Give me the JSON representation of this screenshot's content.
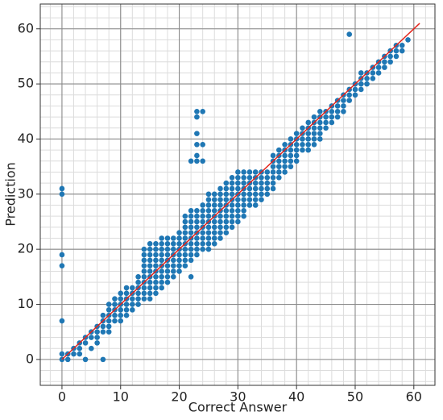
{
  "chart_data": {
    "type": "scatter",
    "xlabel": "Correct Answer",
    "ylabel": "Prediction",
    "xlim": [
      -3.7,
      63.6
    ],
    "ylim": [
      -4.7,
      64.5
    ],
    "xticks": [
      0,
      10,
      20,
      30,
      40,
      50,
      60
    ],
    "yticks": [
      0,
      10,
      20,
      30,
      40,
      50,
      60
    ],
    "grid": true,
    "minor_step": 2,
    "color": "#1f77b4",
    "x": [
      0,
      0,
      0,
      0,
      0,
      0,
      0,
      1,
      1,
      2,
      2,
      3,
      3,
      3,
      4,
      4,
      4,
      5,
      5,
      5,
      6,
      6,
      6,
      6,
      7,
      7,
      7,
      7,
      7,
      8,
      8,
      8,
      8,
      8,
      8,
      9,
      9,
      9,
      9,
      9,
      10,
      10,
      10,
      10,
      10,
      10,
      11,
      11,
      11,
      11,
      11,
      11,
      12,
      12,
      12,
      12,
      12,
      13,
      13,
      13,
      13,
      13,
      13,
      14,
      14,
      14,
      14,
      14,
      14,
      14,
      14,
      14,
      14,
      15,
      15,
      15,
      15,
      15,
      15,
      15,
      15,
      15,
      15,
      15,
      16,
      16,
      16,
      16,
      16,
      16,
      16,
      16,
      16,
      16,
      17,
      17,
      17,
      17,
      17,
      17,
      17,
      17,
      17,
      17,
      18,
      18,
      18,
      18,
      18,
      18,
      18,
      18,
      18,
      19,
      19,
      19,
      19,
      19,
      19,
      19,
      19,
      20,
      20,
      20,
      20,
      20,
      20,
      20,
      20,
      21,
      21,
      21,
      21,
      21,
      21,
      21,
      21,
      21,
      21,
      22,
      22,
      22,
      22,
      22,
      22,
      22,
      22,
      22,
      22,
      22,
      22,
      23,
      23,
      23,
      23,
      23,
      23,
      23,
      23,
      23,
      23,
      23,
      23,
      23,
      23,
      23,
      24,
      24,
      24,
      24,
      24,
      24,
      24,
      24,
      24,
      24,
      24,
      24,
      25,
      25,
      25,
      25,
      25,
      25,
      25,
      25,
      25,
      25,
      25,
      26,
      26,
      26,
      26,
      26,
      26,
      26,
      26,
      26,
      26,
      27,
      27,
      27,
      27,
      27,
      27,
      27,
      27,
      27,
      27,
      28,
      28,
      28,
      28,
      28,
      28,
      28,
      28,
      28,
      28,
      29,
      29,
      29,
      29,
      29,
      29,
      29,
      29,
      29,
      29,
      30,
      30,
      30,
      30,
      30,
      30,
      30,
      30,
      30,
      30,
      31,
      31,
      31,
      31,
      31,
      31,
      31,
      31,
      31,
      32,
      32,
      32,
      32,
      32,
      32,
      32,
      33,
      33,
      33,
      33,
      33,
      33,
      33,
      34,
      34,
      34,
      34,
      34,
      34,
      35,
      35,
      35,
      35,
      35,
      36,
      36,
      36,
      36,
      36,
      36,
      36,
      37,
      37,
      37,
      37,
      37,
      37,
      38,
      38,
      38,
      38,
      38,
      38,
      39,
      39,
      39,
      39,
      39,
      39,
      40,
      40,
      40,
      40,
      40,
      40,
      41,
      41,
      41,
      41,
      41,
      42,
      42,
      42,
      42,
      42,
      42,
      43,
      43,
      43,
      43,
      43,
      43,
      44,
      44,
      44,
      44,
      44,
      44,
      45,
      45,
      45,
      45,
      46,
      46,
      46,
      46,
      47,
      47,
      47,
      47,
      48,
      48,
      48,
      48,
      49,
      49,
      49,
      49,
      50,
      50,
      50,
      51,
      51,
      51,
      51,
      52,
      52,
      52,
      53,
      53,
      53,
      54,
      54,
      54,
      55,
      55,
      55,
      56,
      56,
      56,
      57,
      57,
      57,
      58,
      58,
      59
    ],
    "y": [
      0,
      1,
      7,
      17,
      19,
      30,
      31,
      0,
      1,
      1,
      2,
      1,
      2,
      3,
      0,
      3,
      4,
      2,
      4,
      5,
      3,
      4,
      5,
      6,
      0,
      5,
      6,
      7,
      8,
      5,
      6,
      7,
      8,
      9,
      10,
      7,
      8,
      9,
      10,
      11,
      7,
      8,
      9,
      10,
      11,
      12,
      8,
      9,
      10,
      11,
      12,
      13,
      9,
      10,
      11,
      12,
      13,
      10,
      11,
      12,
      13,
      14,
      15,
      11,
      12,
      13,
      14,
      15,
      16,
      17,
      18,
      19,
      20,
      11,
      12,
      13,
      14,
      15,
      16,
      17,
      18,
      19,
      20,
      21,
      12,
      13,
      14,
      15,
      16,
      17,
      18,
      19,
      20,
      21,
      13,
      14,
      15,
      16,
      17,
      18,
      19,
      20,
      21,
      22,
      14,
      15,
      16,
      17,
      18,
      19,
      20,
      21,
      22,
      15,
      16,
      17,
      18,
      19,
      20,
      21,
      22,
      16,
      17,
      18,
      19,
      20,
      21,
      22,
      23,
      17,
      18,
      19,
      20,
      21,
      22,
      23,
      24,
      25,
      26,
      15,
      18,
      19,
      20,
      21,
      22,
      23,
      24,
      25,
      26,
      27,
      36,
      19,
      20,
      21,
      22,
      23,
      24,
      25,
      26,
      27,
      36,
      37,
      39,
      41,
      44,
      45,
      20,
      21,
      22,
      23,
      24,
      25,
      26,
      27,
      28,
      36,
      39,
      45,
      20,
      21,
      22,
      23,
      24,
      25,
      26,
      27,
      28,
      29,
      30,
      21,
      22,
      23,
      24,
      25,
      26,
      27,
      28,
      29,
      30,
      22,
      23,
      24,
      25,
      26,
      27,
      28,
      29,
      30,
      31,
      23,
      24,
      25,
      26,
      27,
      28,
      29,
      30,
      31,
      32,
      24,
      25,
      26,
      27,
      28,
      29,
      30,
      31,
      32,
      33,
      25,
      26,
      27,
      28,
      29,
      30,
      31,
      32,
      33,
      34,
      26,
      27,
      28,
      29,
      30,
      31,
      32,
      33,
      34,
      28,
      29,
      30,
      31,
      32,
      33,
      34,
      28,
      29,
      30,
      31,
      32,
      33,
      34,
      29,
      30,
      31,
      32,
      33,
      34,
      30,
      31,
      32,
      33,
      34,
      31,
      32,
      33,
      34,
      35,
      36,
      37,
      33,
      34,
      35,
      36,
      37,
      38,
      34,
      35,
      36,
      37,
      38,
      39,
      35,
      36,
      37,
      38,
      39,
      40,
      36,
      37,
      38,
      39,
      40,
      41,
      38,
      39,
      40,
      41,
      42,
      38,
      39,
      40,
      41,
      42,
      43,
      39,
      40,
      41,
      42,
      43,
      44,
      40,
      41,
      42,
      43,
      44,
      45,
      42,
      43,
      44,
      45,
      43,
      44,
      45,
      46,
      44,
      45,
      46,
      47,
      45,
      46,
      47,
      48,
      47,
      48,
      49,
      59,
      48,
      49,
      50,
      49,
      50,
      51,
      52,
      50,
      51,
      52,
      51,
      52,
      53,
      52,
      53,
      54,
      53,
      54,
      55,
      54,
      55,
      56,
      55,
      56,
      57,
      56,
      57,
      58
    ],
    "line": {
      "x": [
        0,
        61
      ],
      "y": [
        0,
        61
      ],
      "color": "#e3241b"
    }
  }
}
